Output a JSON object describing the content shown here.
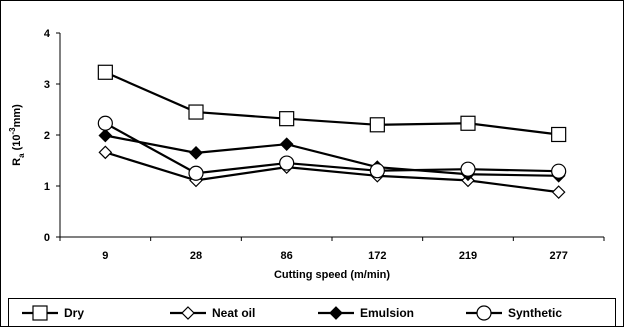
{
  "chart_data": {
    "type": "line",
    "xlabel": "Cutting speed (m/min)",
    "ylabel_main": "R",
    "ylabel_sub": "a",
    "ylabel_unit_prefix": " (10",
    "ylabel_unit_exp": "-3",
    "ylabel_unit_suffix": "mm)",
    "categories": [
      "9",
      "28",
      "86",
      "172",
      "219",
      "277"
    ],
    "ylim": [
      0,
      4
    ],
    "yticks": [
      "0",
      "1",
      "2",
      "3",
      "4"
    ],
    "grid": false,
    "legend_position": "bottom",
    "series": [
      {
        "name": "Dry",
        "marker": "square-open",
        "values": [
          3.23,
          2.45,
          2.32,
          2.2,
          2.23,
          2.01
        ]
      },
      {
        "name": "Neat oil",
        "marker": "diamond-open",
        "values": [
          1.66,
          1.11,
          1.37,
          1.2,
          1.11,
          0.88
        ]
      },
      {
        "name": "Emulsion",
        "marker": "diamond-filled",
        "values": [
          1.99,
          1.65,
          1.82,
          1.37,
          1.23,
          1.2
        ]
      },
      {
        "name": "Synthetic",
        "marker": "circle-open",
        "values": [
          2.23,
          1.25,
          1.45,
          1.3,
          1.33,
          1.29
        ]
      }
    ]
  }
}
